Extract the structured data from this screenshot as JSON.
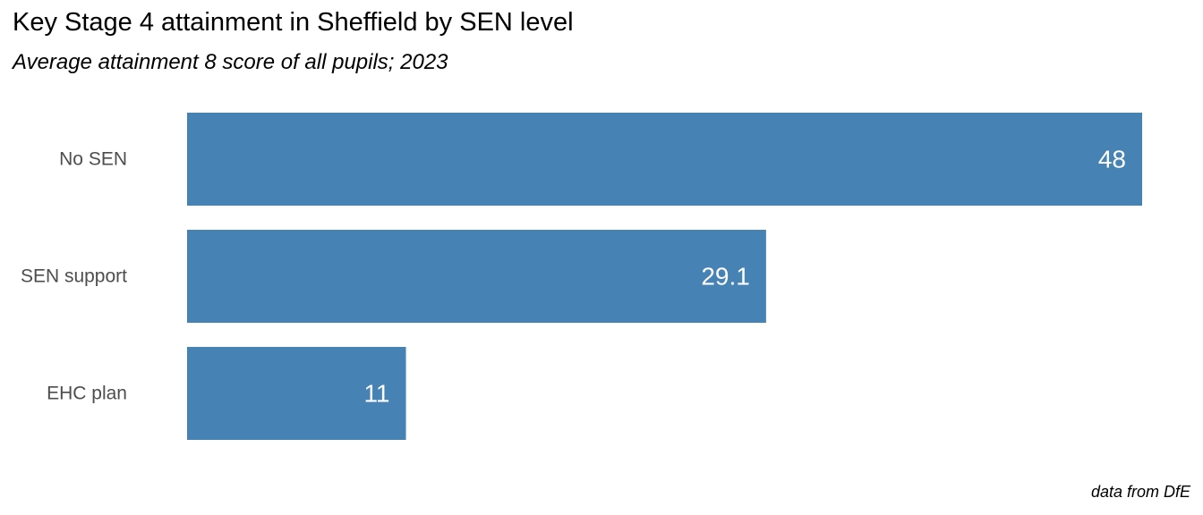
{
  "chart_data": {
    "type": "bar",
    "orientation": "horizontal",
    "title": "Key Stage 4 attainment in Sheffield by SEN level",
    "subtitle": "Average attainment 8 score of all pupils; 2023",
    "caption": "data from DfE",
    "categories": [
      "No SEN",
      "SEN support",
      "EHC plan"
    ],
    "values": [
      48,
      29.1,
      11
    ],
    "value_labels": [
      "48",
      "29.1",
      "11"
    ],
    "xlim": [
      0,
      48
    ],
    "grid": false,
    "bar_color": "#4682B4",
    "label_color": "#FFFFFF"
  }
}
